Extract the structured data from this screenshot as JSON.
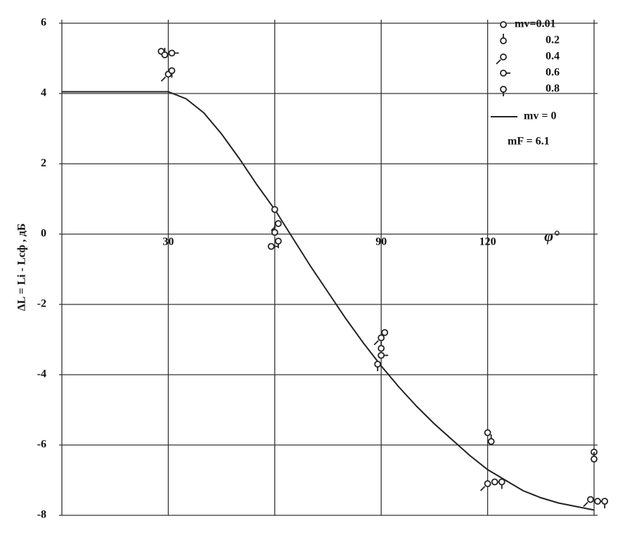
{
  "chart_data": {
    "type": "line",
    "ylabel": "ΔL = Li - Lсф , дБ",
    "xlabel": "φ°",
    "xlim": [
      0,
      150
    ],
    "ylim": [
      -8,
      6
    ],
    "xticks": [
      30,
      90,
      120
    ],
    "xgrid": [
      30,
      60,
      90,
      120,
      150
    ],
    "yticks": [
      -8,
      -6,
      -4,
      -2,
      0,
      2,
      4,
      6
    ],
    "grid": true,
    "legend": "upper right",
    "note": "mF = 6.1",
    "line": {
      "name": "mv = 0",
      "color": "#222222",
      "x": [
        0,
        30,
        35,
        40,
        45,
        50,
        55,
        60,
        65,
        70,
        75,
        80,
        85,
        90,
        95,
        100,
        105,
        110,
        115,
        120,
        125,
        130,
        135,
        140,
        145,
        150
      ],
      "values": [
        4.05,
        4.05,
        3.85,
        3.45,
        2.85,
        2.15,
        1.4,
        0.7,
        -0.1,
        -0.9,
        -1.65,
        -2.4,
        -3.1,
        -3.75,
        -4.35,
        -4.9,
        -5.4,
        -5.85,
        -6.3,
        -6.7,
        -7.0,
        -7.3,
        -7.5,
        -7.65,
        -7.75,
        -7.85
      ]
    },
    "series": [
      {
        "name": "mv=0.01",
        "color": "#222222",
        "x": [
          28,
          60,
          91,
          120,
          150
        ],
        "values": [
          5.2,
          0.7,
          -2.8,
          -5.65,
          -6.2
        ]
      },
      {
        "name": "0.2",
        "color": "#222222",
        "x": [
          29,
          60,
          90,
          121,
          150
        ],
        "values": [
          5.1,
          0.05,
          -3.25,
          -5.9,
          -6.4
        ]
      },
      {
        "name": "0.4",
        "color": "#222222",
        "x": [
          30,
          61,
          90,
          120,
          149
        ],
        "values": [
          4.55,
          0.3,
          -2.95,
          -7.1,
          -7.55
        ]
      },
      {
        "name": "0.6",
        "color": "#222222",
        "x": [
          31,
          59,
          90,
          122,
          151
        ],
        "values": [
          5.15,
          -0.35,
          -3.45,
          -7.05,
          -7.6
        ]
      },
      {
        "name": "0.8",
        "color": "#222222",
        "x": [
          31,
          61,
          89,
          124,
          153
        ],
        "values": [
          4.65,
          -0.2,
          -3.7,
          -7.05,
          -7.6
        ]
      }
    ]
  }
}
